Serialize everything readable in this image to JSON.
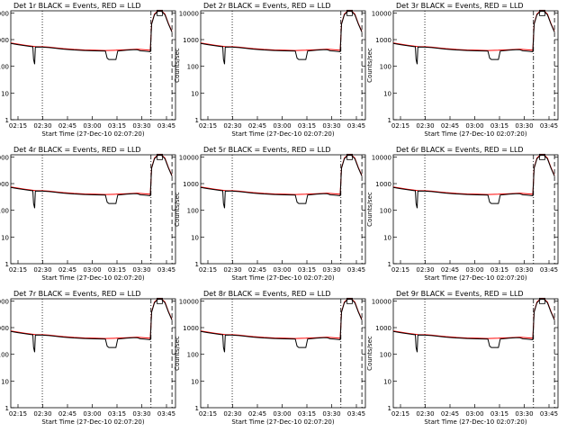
{
  "figure": {
    "xlabel": "Start Time (27-Dec-10 02:07:20)",
    "ylabel": "Counts/sec",
    "x_ticks": [
      "02:15",
      "02:30",
      "02:45",
      "03:00",
      "03:15",
      "03:30",
      "03:45"
    ],
    "y_ticks": [
      "1",
      "10",
      "100",
      "1000",
      "10000"
    ],
    "colors": {
      "events": "#000000",
      "lld": "#ff0000",
      "axes": "#000000"
    }
  },
  "chart_data": [
    {
      "type": "line",
      "title": "Det 1r BLACK = Events, RED = LLD"
    },
    {
      "type": "line",
      "title": "Det 2r BLACK = Events, RED = LLD"
    },
    {
      "type": "line",
      "title": "Det 3r BLACK = Events, RED = LLD"
    },
    {
      "type": "line",
      "title": "Det 4r BLACK = Events, RED = LLD"
    },
    {
      "type": "line",
      "title": "Det 5r BLACK = Events, RED = LLD"
    },
    {
      "type": "line",
      "title": "Det 6r BLACK = Events, RED = LLD"
    },
    {
      "type": "line",
      "title": "Det 7r BLACK = Events, RED = LLD"
    },
    {
      "type": "line",
      "title": "Det 8r BLACK = Events, RED = LLD"
    },
    {
      "type": "line",
      "title": "Det 9r BLACK = Events, RED = LLD"
    }
  ],
  "series_shared": {
    "xlim_minutes": [
      5,
      52
    ],
    "ylim": [
      1,
      12000
    ],
    "vlines_minutes": {
      "dotted": [
        14
      ],
      "dashdot": [
        45
      ],
      "dashed": [
        51
      ]
    },
    "lld": {
      "x": [
        5,
        7,
        9,
        11,
        12,
        13,
        14,
        16,
        18,
        20,
        23,
        26,
        29,
        32,
        35,
        38,
        41,
        43,
        44.8,
        45.2,
        46,
        47,
        48,
        49,
        50,
        51
      ],
      "y": [
        750,
        680,
        620,
        570,
        550,
        540,
        540,
        520,
        490,
        460,
        430,
        410,
        400,
        390,
        400,
        420,
        440,
        420,
        400,
        4000,
        9000,
        12000,
        12000,
        9000,
        4000,
        2000
      ]
    },
    "events": {
      "x": [
        5,
        7,
        9,
        11,
        11.3,
        11.5,
        11.8,
        12,
        14,
        16,
        18,
        20,
        23,
        26,
        29,
        32,
        32.5,
        33,
        35,
        35.5,
        36,
        38,
        40,
        41,
        42,
        43,
        44.8,
        45.2,
        46,
        47,
        48,
        49,
        50,
        51
      ],
      "y": [
        720,
        650,
        590,
        540,
        540,
        180,
        120,
        530,
        520,
        500,
        470,
        440,
        410,
        390,
        380,
        370,
        200,
        180,
        180,
        370,
        380,
        400,
        420,
        420,
        380,
        370,
        350,
        3800,
        8500,
        11500,
        11500,
        8500,
        3800,
        1900
      ]
    },
    "marker": {
      "x": 47.5,
      "y": 10000,
      "symbol": "square"
    }
  }
}
